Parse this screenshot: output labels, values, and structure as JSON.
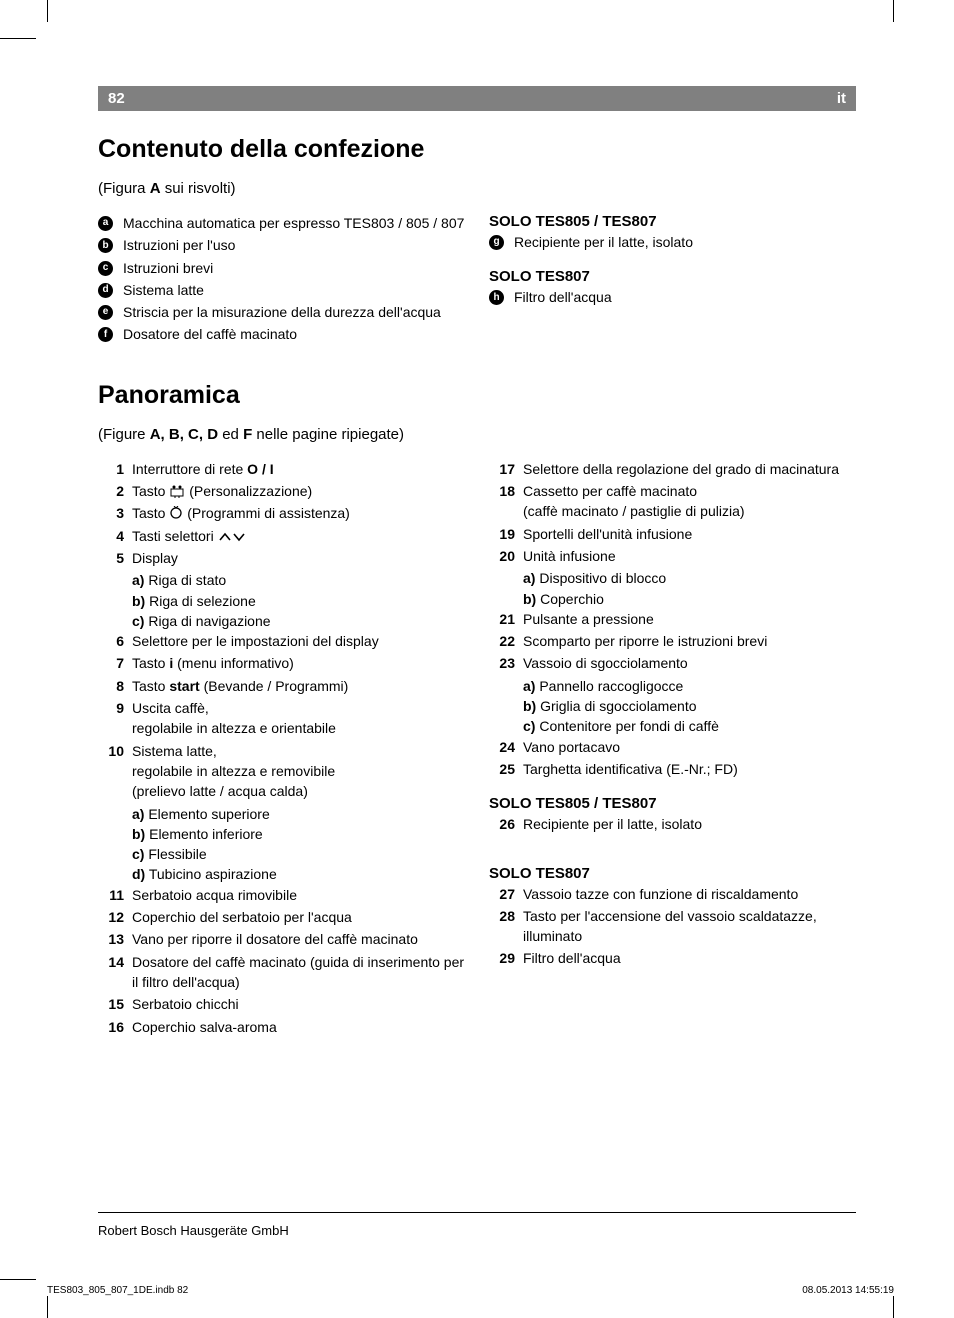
{
  "header": {
    "pageNum": "82",
    "lang": "it"
  },
  "section1": {
    "title": "Contenuto della confezione",
    "subtitle_pre": "(Figura ",
    "subtitle_bold": "A",
    "subtitle_post": " sui risvolti)",
    "left": [
      {
        "l": "a",
        "t": "Macchina automatica per espresso TES803 / 805 / 807"
      },
      {
        "l": "b",
        "t": "Istruzioni per l'uso"
      },
      {
        "l": "c",
        "t": "Istruzioni brevi"
      },
      {
        "l": "d",
        "t": "Sistema latte"
      },
      {
        "l": "e",
        "t": "Striscia per la misurazione della durezza dell'acqua"
      },
      {
        "l": "f",
        "t": "Dosatore del caffè macinato"
      }
    ],
    "right": [
      {
        "head": "SOLO TES805 / TES807"
      },
      {
        "l": "g",
        "t": "Recipiente per il latte, isolato"
      },
      {
        "spacer": true
      },
      {
        "head": "SOLO TES807"
      },
      {
        "l": "h",
        "t": "Filtro dell'acqua"
      }
    ]
  },
  "section2": {
    "title": "Panoramica",
    "subtitle_pre": "(Figure ",
    "subtitle_bold": "A, B, C, D",
    "subtitle_mid": " ed ",
    "subtitle_bold2": "F",
    "subtitle_post": " nelle pagine ripiegate)",
    "left": [
      {
        "n": "1",
        "html": "Interruttore di rete <b>O / I</b>"
      },
      {
        "n": "2",
        "html": "Tasto <span class='icon-inline'><svg width='16' height='14'><rect x='2' y='5' width='12' height='7' fill='none' stroke='#000'/><circle cx='5' cy='3' r='1.5' fill='#000'/><circle cx='11' cy='3' r='1.5' fill='#000'/><line x1='6' y1='12' x2='6' y2='14' stroke='#000'/><line x1='10' y1='12' x2='10' y2='14' stroke='#000'/></svg></span> (Personalizzazione)"
      },
      {
        "n": "3",
        "html": "Tasto <span class='icon-inline'><svg width='14' height='14'><circle cx='7' cy='7' r='5' fill='none' stroke='#000' stroke-width='1.3'/><path d='M7 2 L9 0 M7 2 L5 0' stroke='#000' fill='none'/></svg></span> (Programmi di assistenza)"
      },
      {
        "n": "4",
        "html": "Tasti selettori <span class='icon-inline'><svg width='28' height='12'><path d='M2 9 L7 3 L12 9' fill='none' stroke='#000' stroke-width='1.6'/><path d='M16 3 L21 9 L26 3' fill='none' stroke='#000' stroke-width='1.6'/></svg></span>"
      },
      {
        "n": "5",
        "html": "Display",
        "subs": [
          {
            "b": "a)",
            "t": " Riga di stato"
          },
          {
            "b": "b)",
            "t": " Riga di selezione"
          },
          {
            "b": "c)",
            "t": " Riga di navigazione"
          }
        ]
      },
      {
        "n": "6",
        "html": "Selettore per le impostazioni del display"
      },
      {
        "n": "7",
        "html": "Tasto <b>i</b> (menu informativo)"
      },
      {
        "n": "8",
        "html": "Tasto <b>start</b> (Bevande / Programmi)"
      },
      {
        "n": "9",
        "html": "Uscita caffè,<br>regolabile in altezza e orientabile"
      },
      {
        "n": "10",
        "html": "Sistema latte,<br>regolabile in altezza e removibile<br>(prelievo latte / acqua calda)",
        "subs": [
          {
            "b": "a)",
            "t": " Elemento superiore"
          },
          {
            "b": "b)",
            "t": " Elemento inferiore"
          },
          {
            "b": "c)",
            "t": " Flessibile"
          },
          {
            "b": "d)",
            "t": " Tubicino aspirazione"
          }
        ]
      },
      {
        "n": "11",
        "html": "Serbatoio acqua rimovibile"
      },
      {
        "n": "12",
        "html": "Coperchio del serbatoio per l'acqua"
      },
      {
        "n": "13",
        "html": "Vano per riporre il dosatore del caffè macinato"
      },
      {
        "n": "14",
        "html": "Dosatore del caffè macinato (guida di inserimento per il filtro dell'acqua)"
      },
      {
        "n": "15",
        "html": "Serbatoio chicchi"
      },
      {
        "n": "16",
        "html": "Coperchio salva-aroma"
      }
    ],
    "right": [
      {
        "n": "17",
        "html": "Selettore della regolazione del grado di macinatura"
      },
      {
        "n": "18",
        "html": "Cassetto per caffè macinato<br>(caffè macinato / pastiglie di pulizia)"
      },
      {
        "n": "19",
        "html": "Sportelli dell'unità infusione"
      },
      {
        "n": "20",
        "html": "Unità infusione",
        "subs": [
          {
            "b": "a)",
            "t": " Dispositivo di blocco"
          },
          {
            "b": "b)",
            "t": " Coperchio"
          }
        ]
      },
      {
        "n": "21",
        "html": "Pulsante a pressione"
      },
      {
        "n": "22",
        "html": "Scomparto per riporre le istruzioni brevi"
      },
      {
        "n": "23",
        "html": "Vassoio di sgocciolamento",
        "subs": [
          {
            "b": "a)",
            "t": " Pannello raccogligocce"
          },
          {
            "b": "b)",
            "t": " Griglia di sgocciolamento"
          },
          {
            "b": "c)",
            "t": " Contenitore per fondi di caffè"
          }
        ]
      },
      {
        "n": "24",
        "html": "Vano portacavo"
      },
      {
        "n": "25",
        "html": "Targhetta identificativa (E.-Nr.; FD)"
      },
      {
        "spacer": true
      },
      {
        "head": "SOLO TES805 / TES807"
      },
      {
        "n": "26",
        "html": "Recipiente per il latte, isolato"
      },
      {
        "spacer2": true
      },
      {
        "head": "SOLO TES807"
      },
      {
        "n": "27",
        "html": "Vassoio tazze con funzione di riscaldamento"
      },
      {
        "n": "28",
        "html": "Tasto per l'accensione del vassoio scaldatazze, illuminato"
      },
      {
        "n": "29",
        "html": "Filtro dell'acqua"
      }
    ]
  },
  "footer": {
    "company": "Robert Bosch Hausgeräte GmbH"
  },
  "printInfo": {
    "file": "TES803_805_807_1DE.indb   82",
    "date": "08.05.2013   14:55:19"
  }
}
